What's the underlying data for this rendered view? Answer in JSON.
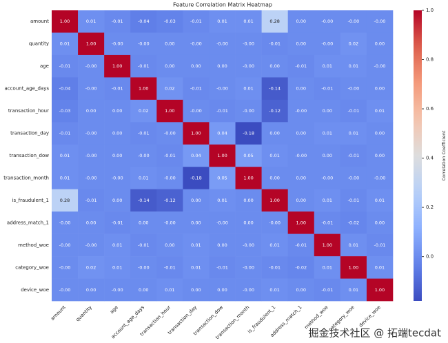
{
  "chart_data": {
    "type": "heatmap",
    "title": "Feature Correlation Matrix Heatmap",
    "categories": [
      "amount",
      "quantity",
      "age",
      "account_age_days",
      "transaction_hour",
      "transaction_day",
      "transaction_dow",
      "transaction_month",
      "is_fraudulent_1",
      "address_match_1",
      "method_woe",
      "category_woe",
      "device_woe"
    ],
    "values": [
      [
        1.0,
        0.01,
        -0.01,
        -0.04,
        -0.03,
        -0.01,
        0.01,
        0.01,
        0.28,
        0.0,
        0,
        0,
        0
      ],
      [
        0.01,
        1.0,
        0,
        0,
        0.0,
        0,
        0,
        0,
        -0.01,
        0.0,
        0,
        0.02,
        0.0
      ],
      [
        -0.01,
        0,
        1.0,
        -0.01,
        0.0,
        0.0,
        0.0,
        0,
        0.0,
        -0.01,
        0.01,
        0.01,
        0
      ],
      [
        -0.04,
        0,
        -0.01,
        1.0,
        0.02,
        -0.01,
        0,
        0.01,
        -0.14,
        0.0,
        -0.01,
        0,
        0.0
      ],
      [
        -0.03,
        0.0,
        0.0,
        0.02,
        1.0,
        0,
        -0.01,
        0,
        -0.12,
        0,
        0.0,
        -0.01,
        0.01
      ],
      [
        -0.01,
        0,
        0.0,
        -0.01,
        0,
        1.0,
        0.04,
        -0.18,
        0.0,
        0.0,
        0.01,
        0.01,
        0.0
      ],
      [
        0.01,
        0,
        0.0,
        0,
        -0.01,
        0.04,
        1.0,
        0.05,
        0.01,
        0,
        0.0,
        -0.01,
        0.0
      ],
      [
        0.01,
        0,
        0,
        0.01,
        0,
        -0.18,
        0.05,
        1.0,
        0.0,
        0.0,
        0,
        0,
        0
      ],
      [
        0.28,
        -0.01,
        0.0,
        -0.14,
        -0.12,
        0.0,
        0.01,
        0.0,
        1.0,
        0.0,
        0.01,
        -0.01,
        0.01
      ],
      [
        0,
        0.0,
        -0.01,
        0.0,
        0,
        0.0,
        0,
        0.0,
        0,
        1.0,
        -0.01,
        -0.02,
        0.0
      ],
      [
        0,
        0,
        0.01,
        -0.01,
        0.0,
        0.01,
        0.0,
        0,
        0.01,
        -0.01,
        1.0,
        0.01,
        -0.01
      ],
      [
        0,
        0.02,
        0.01,
        0,
        -0.01,
        0.01,
        -0.01,
        0,
        -0.01,
        -0.02,
        0.01,
        1.0,
        0.01
      ],
      [
        0,
        0.0,
        0,
        0.0,
        0.01,
        0.0,
        0.0,
        0,
        0.01,
        0.0,
        -0.01,
        0.01,
        1.0
      ]
    ],
    "value_labels": [
      [
        "1.00",
        "0.01",
        "-0.01",
        "-0.04",
        "-0.03",
        "-0.01",
        "0.01",
        "0.01",
        "0.28",
        "0.00",
        "-0.00",
        "-0.00",
        "-0.00"
      ],
      [
        "0.01",
        "1.00",
        "-0.00",
        "-0.00",
        "0.00",
        "-0.00",
        "-0.00",
        "-0.00",
        "-0.01",
        "0.00",
        "-0.00",
        "0.02",
        "0.00"
      ],
      [
        "-0.01",
        "-0.00",
        "1.00",
        "-0.01",
        "0.00",
        "0.00",
        "0.00",
        "-0.00",
        "0.00",
        "-0.01",
        "0.01",
        "0.01",
        "-0.00"
      ],
      [
        "-0.04",
        "-0.00",
        "-0.01",
        "1.00",
        "0.02",
        "-0.01",
        "-0.00",
        "0.01",
        "-0.14",
        "0.00",
        "-0.01",
        "-0.00",
        "0.00"
      ],
      [
        "-0.03",
        "0.00",
        "0.00",
        "0.02",
        "1.00",
        "-0.00",
        "-0.01",
        "-0.00",
        "-0.12",
        "-0.00",
        "0.00",
        "-0.01",
        "0.01"
      ],
      [
        "-0.01",
        "-0.00",
        "0.00",
        "-0.01",
        "-0.00",
        "1.00",
        "0.04",
        "-0.18",
        "0.00",
        "0.00",
        "0.01",
        "0.01",
        "0.00"
      ],
      [
        "0.01",
        "-0.00",
        "0.00",
        "-0.00",
        "-0.01",
        "0.04",
        "1.00",
        "0.05",
        "0.01",
        "-0.00",
        "0.00",
        "-0.01",
        "0.00"
      ],
      [
        "0.01",
        "-0.00",
        "-0.00",
        "0.01",
        "-0.00",
        "-0.18",
        "0.05",
        "1.00",
        "0.00",
        "0.00",
        "-0.00",
        "-0.00",
        "-0.00"
      ],
      [
        "0.28",
        "-0.01",
        "0.00",
        "-0.14",
        "-0.12",
        "0.00",
        "0.01",
        "0.00",
        "1.00",
        "0.00",
        "0.01",
        "-0.01",
        "0.01"
      ],
      [
        "-0.00",
        "0.00",
        "-0.01",
        "0.00",
        "-0.00",
        "0.00",
        "-0.00",
        "0.00",
        "-0.00",
        "1.00",
        "-0.01",
        "-0.02",
        "0.00"
      ],
      [
        "-0.00",
        "-0.00",
        "0.01",
        "-0.01",
        "0.00",
        "0.01",
        "0.00",
        "-0.00",
        "0.01",
        "-0.01",
        "1.00",
        "0.01",
        "-0.01"
      ],
      [
        "-0.00",
        "0.02",
        "0.01",
        "-0.00",
        "-0.01",
        "0.01",
        "-0.01",
        "-0.00",
        "-0.01",
        "-0.02",
        "0.01",
        "1.00",
        "0.01"
      ],
      [
        "-0.00",
        "0.00",
        "-0.00",
        "0.00",
        "0.01",
        "0.00",
        "0.00",
        "-0.00",
        "0.01",
        "0.00",
        "-0.01",
        "0.01",
        "1.00"
      ]
    ],
    "colormap": "coolwarm",
    "clim": [
      -0.18,
      1.0
    ],
    "cticks": [
      {
        "value": 0.0,
        "label": "0.0"
      },
      {
        "value": 0.2,
        "label": "0.2"
      },
      {
        "value": 0.4,
        "label": "0.4"
      },
      {
        "value": 0.6,
        "label": "0.6"
      },
      {
        "value": 0.8,
        "label": "0.8"
      },
      {
        "value": 1.0,
        "label": "1.0"
      }
    ],
    "colorbar_label": "Correlation Coefficient",
    "watermark": "掘金技术社区 @ 拓端tecdat"
  }
}
